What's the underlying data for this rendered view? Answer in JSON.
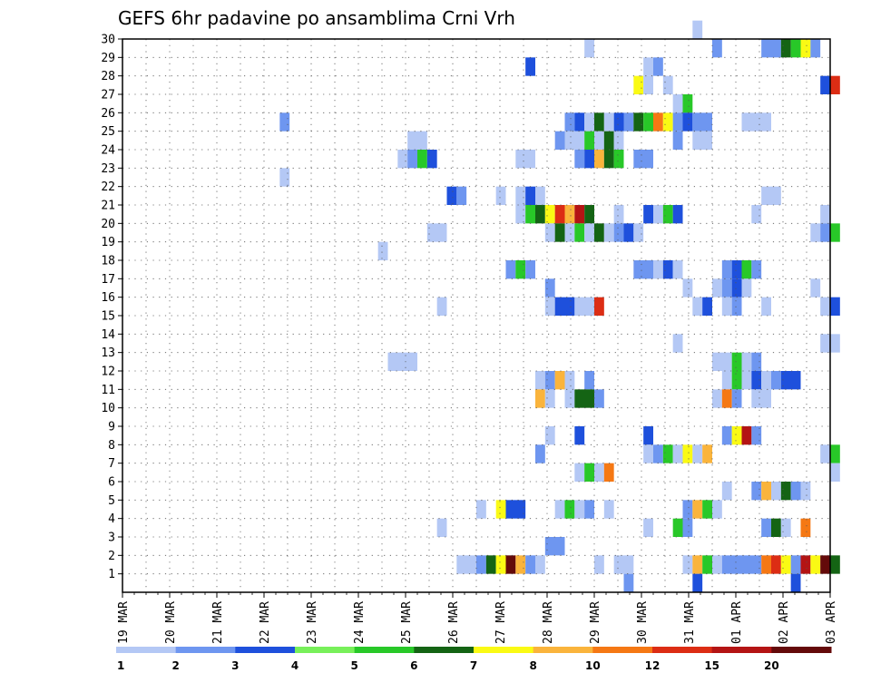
{
  "chart_data": {
    "type": "heatmap",
    "title": "GEFS 6hr padavine po ansamblima Crni Vrh",
    "xlabel": "",
    "ylabel": "",
    "x_ticks": [
      "19 MAR",
      "20 MAR",
      "21 MAR",
      "22 MAR",
      "23 MAR",
      "24 MAR",
      "25 MAR",
      "26 MAR",
      "27 MAR",
      "28 MAR",
      "29 MAR",
      "30 MAR",
      "31 MAR",
      "01 APR",
      "02 APR",
      "03 APR"
    ],
    "x_range": [
      "19 MAR 00Z",
      "03 APR 00Z"
    ],
    "time_step_hours": 6,
    "y_ticks": [
      1,
      2,
      3,
      4,
      5,
      6,
      7,
      8,
      9,
      10,
      11,
      12,
      13,
      14,
      15,
      16,
      17,
      18,
      19,
      20,
      21,
      22,
      23,
      24,
      25,
      26,
      27,
      28,
      29,
      30
    ],
    "y_range": [
      0,
      30
    ],
    "grid": true,
    "legend": {
      "position": "bottom",
      "labels": [
        "1",
        "2",
        "3",
        "4",
        "5",
        "6",
        "7",
        "8",
        "10",
        "12",
        "15",
        "20"
      ],
      "colors": [
        "#b4c8f5",
        "#6e96f0",
        "#1e50dc",
        "#78f05a",
        "#28c828",
        "#146414",
        "#fafa14",
        "#fab43c",
        "#f57814",
        "#dc2d14",
        "#b41414",
        "#640a0a"
      ]
    },
    "cells": [
      {
        "member": 30,
        "runs": [
          [
            58,
            59,
            1
          ]
        ]
      },
      {
        "member": 29,
        "runs": [
          [
            47,
            48,
            1
          ],
          [
            60,
            61,
            2
          ],
          [
            65,
            67,
            2
          ],
          [
            67,
            68,
            6
          ],
          [
            68,
            69,
            5
          ],
          [
            69,
            70,
            7
          ],
          [
            70,
            71,
            2
          ]
        ]
      },
      {
        "member": 28,
        "runs": [
          [
            41,
            42,
            3
          ],
          [
            53,
            54,
            1
          ],
          [
            54,
            55,
            2
          ]
        ]
      },
      {
        "member": 27,
        "runs": [
          [
            52,
            53,
            7
          ],
          [
            53,
            54,
            1
          ],
          [
            55,
            56,
            1
          ],
          [
            71,
            72,
            3
          ],
          [
            72,
            73,
            10
          ]
        ]
      },
      {
        "member": 26,
        "runs": [
          [
            56,
            57,
            1
          ],
          [
            57,
            58,
            5
          ]
        ]
      },
      {
        "member": 25,
        "runs": [
          [
            16,
            17,
            2
          ],
          [
            45,
            46,
            2
          ],
          [
            46,
            47,
            3
          ],
          [
            47,
            48,
            1
          ],
          [
            48,
            49,
            6
          ],
          [
            49,
            50,
            1
          ],
          [
            50,
            51,
            3
          ],
          [
            51,
            52,
            2
          ],
          [
            52,
            53,
            6
          ],
          [
            53,
            54,
            5
          ],
          [
            54,
            55,
            9
          ],
          [
            55,
            56,
            7
          ],
          [
            56,
            57,
            2
          ],
          [
            57,
            58,
            3
          ],
          [
            58,
            60,
            2
          ],
          [
            63,
            66,
            1
          ]
        ]
      },
      {
        "member": 24,
        "runs": [
          [
            29,
            31,
            1
          ],
          [
            44,
            45,
            2
          ],
          [
            45,
            47,
            1
          ],
          [
            47,
            48,
            5
          ],
          [
            48,
            49,
            1
          ],
          [
            49,
            50,
            6
          ],
          [
            50,
            51,
            1
          ],
          [
            56,
            57,
            2
          ],
          [
            58,
            60,
            1
          ]
        ]
      },
      {
        "member": 23,
        "runs": [
          [
            28,
            29,
            1
          ],
          [
            29,
            30,
            2
          ],
          [
            30,
            31,
            5
          ],
          [
            31,
            32,
            3
          ],
          [
            40,
            42,
            1
          ],
          [
            46,
            47,
            2
          ],
          [
            47,
            48,
            3
          ],
          [
            48,
            49,
            8
          ],
          [
            49,
            50,
            6
          ],
          [
            50,
            51,
            5
          ],
          [
            52,
            54,
            2
          ]
        ]
      },
      {
        "member": 22,
        "runs": [
          [
            16,
            17,
            1
          ]
        ]
      },
      {
        "member": 21,
        "runs": [
          [
            33,
            34,
            3
          ],
          [
            34,
            35,
            2
          ],
          [
            38,
            39,
            1
          ],
          [
            40,
            41,
            1
          ],
          [
            41,
            42,
            3
          ],
          [
            42,
            43,
            1
          ],
          [
            65,
            67,
            1
          ]
        ]
      },
      {
        "member": 20,
        "runs": [
          [
            40,
            41,
            1
          ],
          [
            41,
            42,
            5
          ],
          [
            42,
            43,
            6
          ],
          [
            43,
            44,
            7
          ],
          [
            44,
            45,
            10
          ],
          [
            45,
            46,
            8
          ],
          [
            46,
            47,
            11
          ],
          [
            47,
            48,
            6
          ],
          [
            50,
            51,
            1
          ],
          [
            53,
            54,
            3
          ],
          [
            54,
            55,
            1
          ],
          [
            55,
            56,
            5
          ],
          [
            56,
            57,
            3
          ],
          [
            64,
            65,
            1
          ],
          [
            71,
            72,
            1
          ]
        ]
      },
      {
        "member": 19,
        "runs": [
          [
            31,
            33,
            1
          ],
          [
            43,
            44,
            1
          ],
          [
            44,
            45,
            6
          ],
          [
            45,
            46,
            1
          ],
          [
            46,
            47,
            5
          ],
          [
            47,
            48,
            1
          ],
          [
            48,
            49,
            6
          ],
          [
            49,
            50,
            1
          ],
          [
            50,
            51,
            2
          ],
          [
            51,
            52,
            3
          ],
          [
            52,
            53,
            1
          ],
          [
            70,
            71,
            1
          ],
          [
            71,
            72,
            2
          ],
          [
            72,
            73,
            5
          ]
        ]
      },
      {
        "member": 18,
        "runs": [
          [
            26,
            27,
            1
          ]
        ]
      },
      {
        "member": 17,
        "runs": [
          [
            39,
            40,
            2
          ],
          [
            40,
            41,
            5
          ],
          [
            41,
            42,
            2
          ],
          [
            52,
            54,
            2
          ],
          [
            54,
            55,
            1
          ],
          [
            55,
            56,
            3
          ],
          [
            56,
            57,
            1
          ],
          [
            61,
            62,
            2
          ],
          [
            62,
            63,
            3
          ],
          [
            63,
            64,
            5
          ],
          [
            64,
            65,
            2
          ]
        ]
      },
      {
        "member": 16,
        "runs": [
          [
            43,
            44,
            2
          ],
          [
            57,
            58,
            1
          ],
          [
            60,
            61,
            1
          ],
          [
            61,
            62,
            2
          ],
          [
            62,
            63,
            3
          ],
          [
            63,
            64,
            1
          ],
          [
            70,
            71,
            1
          ]
        ]
      },
      {
        "member": 15,
        "runs": [
          [
            32,
            33,
            1
          ],
          [
            43,
            44,
            1
          ],
          [
            44,
            46,
            3
          ],
          [
            46,
            48,
            1
          ],
          [
            48,
            49,
            10
          ],
          [
            58,
            59,
            1
          ],
          [
            59,
            60,
            3
          ],
          [
            61,
            62,
            1
          ],
          [
            62,
            63,
            2
          ],
          [
            65,
            66,
            1
          ],
          [
            71,
            72,
            1
          ],
          [
            72,
            73,
            3
          ]
        ]
      },
      {
        "member": 13,
        "runs": [
          [
            56,
            57,
            1
          ],
          [
            71,
            73,
            1
          ]
        ]
      },
      {
        "member": 12,
        "runs": [
          [
            27,
            30,
            1
          ],
          [
            60,
            62,
            1
          ],
          [
            62,
            63,
            5
          ],
          [
            63,
            64,
            1
          ],
          [
            64,
            65,
            2
          ]
        ]
      },
      {
        "member": 11,
        "runs": [
          [
            42,
            43,
            1
          ],
          [
            43,
            44,
            2
          ],
          [
            44,
            45,
            8
          ],
          [
            45,
            46,
            1
          ],
          [
            47,
            48,
            2
          ],
          [
            61,
            62,
            1
          ],
          [
            62,
            63,
            5
          ],
          [
            63,
            64,
            1
          ],
          [
            64,
            65,
            3
          ],
          [
            65,
            66,
            1
          ],
          [
            66,
            67,
            2
          ],
          [
            67,
            69,
            3
          ]
        ]
      },
      {
        "member": 10,
        "runs": [
          [
            42,
            43,
            8
          ],
          [
            43,
            44,
            1
          ],
          [
            45,
            46,
            1
          ],
          [
            46,
            48,
            6
          ],
          [
            48,
            49,
            2
          ],
          [
            60,
            61,
            1
          ],
          [
            61,
            62,
            9
          ],
          [
            62,
            63,
            2
          ],
          [
            64,
            66,
            1
          ]
        ]
      },
      {
        "member": 8,
        "runs": [
          [
            43,
            44,
            1
          ],
          [
            46,
            47,
            3
          ],
          [
            53,
            54,
            3
          ],
          [
            61,
            62,
            2
          ],
          [
            62,
            63,
            7
          ],
          [
            63,
            64,
            11
          ],
          [
            64,
            65,
            2
          ]
        ]
      },
      {
        "member": 7,
        "runs": [
          [
            42,
            43,
            2
          ],
          [
            53,
            54,
            1
          ],
          [
            54,
            55,
            2
          ],
          [
            55,
            56,
            5
          ],
          [
            56,
            57,
            1
          ],
          [
            57,
            58,
            7
          ],
          [
            58,
            59,
            1
          ],
          [
            59,
            60,
            8
          ],
          [
            71,
            72,
            1
          ],
          [
            72,
            73,
            5
          ]
        ]
      },
      {
        "member": 6,
        "runs": [
          [
            46,
            47,
            1
          ],
          [
            47,
            48,
            5
          ],
          [
            48,
            49,
            1
          ],
          [
            49,
            50,
            9
          ],
          [
            72,
            73,
            1
          ]
        ]
      },
      {
        "member": 5,
        "runs": [
          [
            61,
            62,
            1
          ],
          [
            64,
            65,
            2
          ],
          [
            65,
            66,
            8
          ],
          [
            66,
            67,
            1
          ],
          [
            67,
            68,
            6
          ],
          [
            68,
            69,
            2
          ],
          [
            69,
            70,
            1
          ]
        ]
      },
      {
        "member": 4,
        "runs": [
          [
            36,
            37,
            1
          ],
          [
            38,
            39,
            7
          ],
          [
            39,
            41,
            3
          ],
          [
            44,
            45,
            1
          ],
          [
            45,
            46,
            5
          ],
          [
            46,
            47,
            1
          ],
          [
            47,
            48,
            2
          ],
          [
            49,
            50,
            1
          ],
          [
            57,
            58,
            2
          ],
          [
            58,
            59,
            8
          ],
          [
            59,
            60,
            5
          ],
          [
            60,
            61,
            1
          ]
        ]
      },
      {
        "member": 3,
        "runs": [
          [
            32,
            33,
            1
          ],
          [
            53,
            54,
            1
          ],
          [
            56,
            57,
            5
          ],
          [
            57,
            58,
            2
          ],
          [
            65,
            66,
            2
          ],
          [
            66,
            67,
            6
          ],
          [
            67,
            68,
            1
          ],
          [
            69,
            70,
            9
          ]
        ]
      },
      {
        "member": 2,
        "runs": [
          [
            43,
            45,
            2
          ]
        ]
      },
      {
        "member": 1,
        "runs": [
          [
            34,
            36,
            1
          ],
          [
            36,
            37,
            2
          ],
          [
            37,
            38,
            6
          ],
          [
            38,
            39,
            7
          ],
          [
            39,
            40,
            12
          ],
          [
            40,
            41,
            8
          ],
          [
            41,
            42,
            2
          ],
          [
            42,
            43,
            1
          ],
          [
            48,
            49,
            1
          ],
          [
            50,
            52,
            1
          ],
          [
            57,
            58,
            1
          ],
          [
            58,
            59,
            8
          ],
          [
            59,
            60,
            5
          ],
          [
            60,
            61,
            1
          ],
          [
            61,
            65,
            2
          ],
          [
            65,
            66,
            9
          ],
          [
            66,
            67,
            10
          ],
          [
            67,
            68,
            7
          ],
          [
            68,
            69,
            2
          ],
          [
            69,
            70,
            11
          ],
          [
            70,
            71,
            7
          ],
          [
            71,
            72,
            12
          ],
          [
            72,
            73,
            6
          ]
        ]
      },
      {
        "member": 0,
        "runs": [
          [
            51,
            52,
            2
          ],
          [
            58,
            59,
            3
          ],
          [
            68,
            69,
            3
          ]
        ]
      }
    ]
  }
}
